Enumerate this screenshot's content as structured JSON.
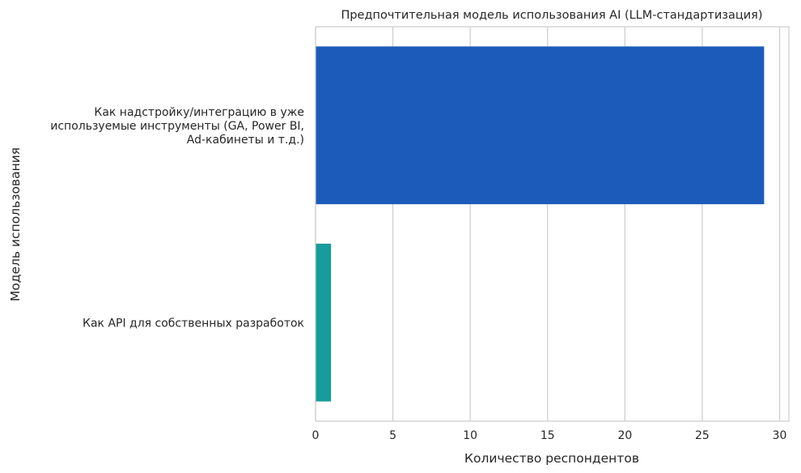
{
  "chart_data": {
    "type": "bar",
    "orientation": "horizontal",
    "title": "Предпочтительная модель использования AI (LLM-стандартизация)",
    "xlabel": "Количество респондентов",
    "ylabel": "Модель использования",
    "categories": [
      "Как надстройку/интеграцию в уже используемые инструменты (GA, Power BI, Ad-кабинеты и т.д.)",
      "Как API для собственных разработок"
    ],
    "category_label_lines": [
      [
        "Как надстройку/интеграцию в уже",
        "используемые инструменты (GA, Power BI,",
        "Ad-кабинеты и т.д.)"
      ],
      [
        "Как API для собственных разработок"
      ]
    ],
    "values": [
      29,
      1
    ],
    "colors": [
      "#1c5bba",
      "#169c9a"
    ],
    "xlim": [
      0,
      30.6
    ],
    "xticks": [
      0,
      5,
      10,
      15,
      20,
      25,
      30
    ],
    "grid": "vertical",
    "legend": "none"
  }
}
